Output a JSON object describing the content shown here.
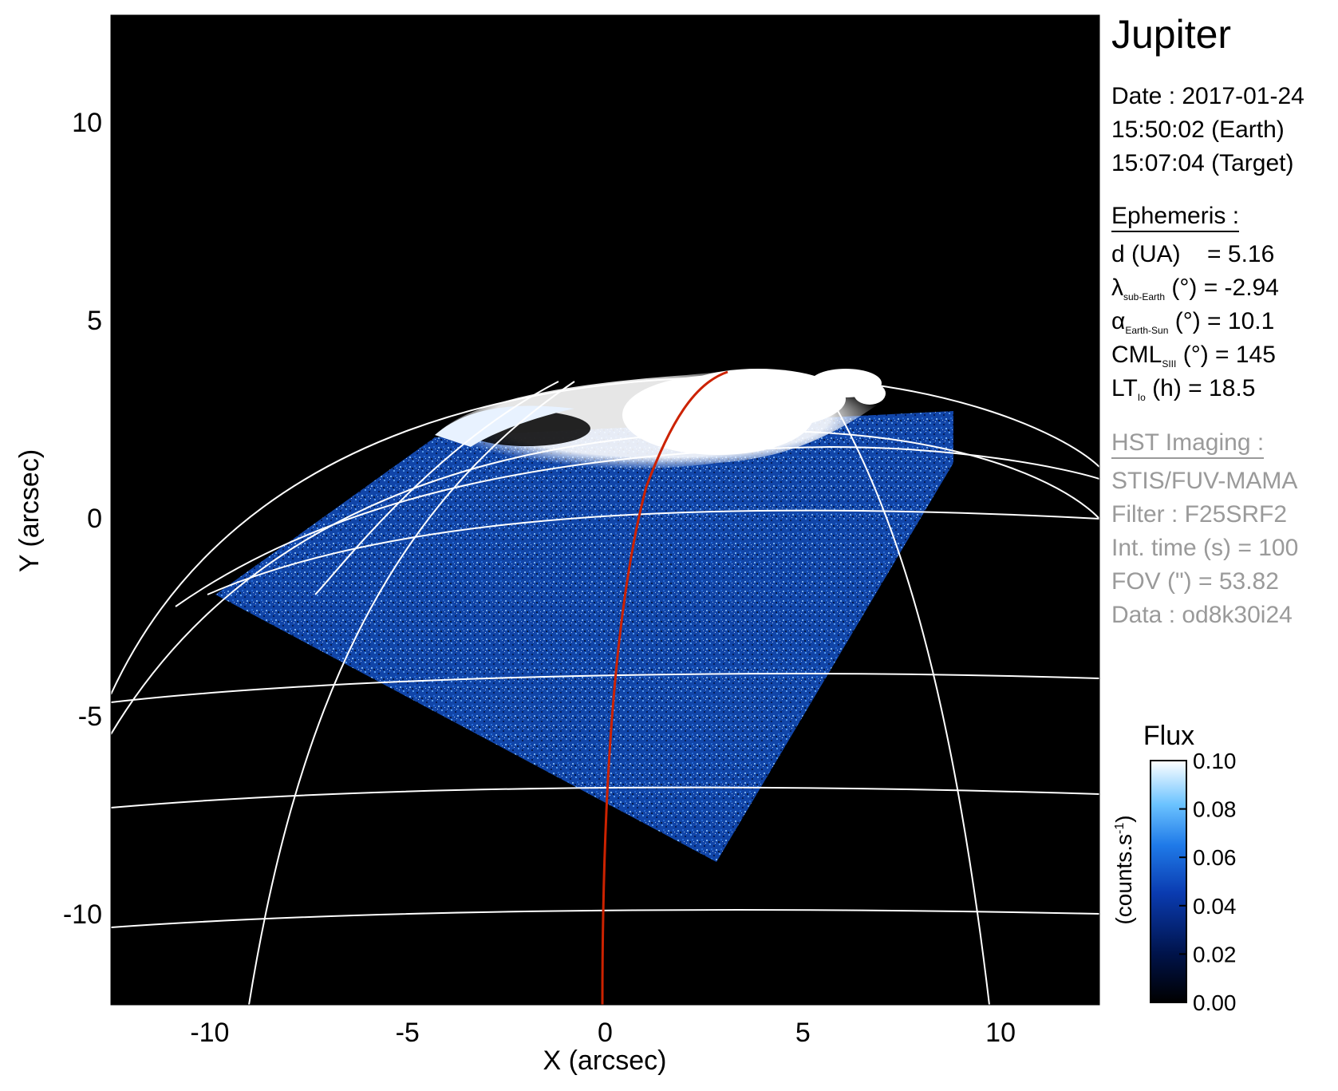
{
  "title": "Jupiter",
  "date": {
    "date_line": "Date : 2017-01-24",
    "earth_time": "15:50:02 (Earth)",
    "target_time": "15:07:04 (Target)"
  },
  "ephemeris": {
    "header": "Ephemeris :",
    "d_label": "d (UA)",
    "d_value": "= 5.16",
    "lambda_sym": "λ",
    "lambda_sub": "sub-Earth",
    "lambda_rest": "(°) = -2.94",
    "alpha_sym": "α",
    "alpha_sub": "Earth-Sun",
    "alpha_rest": "(°) = 10.1",
    "cml_sym": "CML",
    "cml_sub": "SIII",
    "cml_rest": "(°) = 145",
    "lt_sym": "LT",
    "lt_sub": "Io",
    "lt_rest": "(h) = 18.5"
  },
  "imaging": {
    "header": "HST Imaging :",
    "instrument": "STIS/FUV-MAMA",
    "filter": "Filter : F25SRF2",
    "int_time": "Int. time (s) = 100",
    "fov": "FOV (\") = 53.82",
    "data": "Data : od8k30i24"
  },
  "colorbar": {
    "title": "Flux",
    "unit": "(counts.s",
    "unit_sup": "-1",
    "unit_close": ")",
    "ticks": [
      "0.10",
      "0.08",
      "0.06",
      "0.04",
      "0.02",
      "0.00"
    ],
    "tick_values": [
      0.1,
      0.08,
      0.06,
      0.04,
      0.02,
      0.0
    ],
    "colors": [
      "#000000",
      "#00134a",
      "#0a3bb0",
      "#1f7ae8",
      "#6cc3ff",
      "#ffffff"
    ]
  },
  "axes": {
    "xlabel": "X (arcsec)",
    "ylabel": "Y (arcsec)",
    "xlim": [
      -12.5,
      12.5
    ],
    "ylim": [
      -12.3,
      12.7
    ],
    "xticks": [
      -10,
      -5,
      0,
      5,
      10
    ],
    "yticks": [
      10,
      5,
      0,
      -5,
      -10
    ],
    "xtick_labels": [
      "-10",
      "-5",
      "0",
      "5",
      "10"
    ],
    "ytick_labels": [
      "10",
      "5",
      "0",
      "-5",
      "-10"
    ]
  },
  "colors": {
    "background": "#000000",
    "grid": "#ffffff",
    "trace": "#cc2200",
    "emission": "#1d5fd6",
    "aurora": "#ffffff",
    "secondary_text": "#9a9a9a"
  }
}
